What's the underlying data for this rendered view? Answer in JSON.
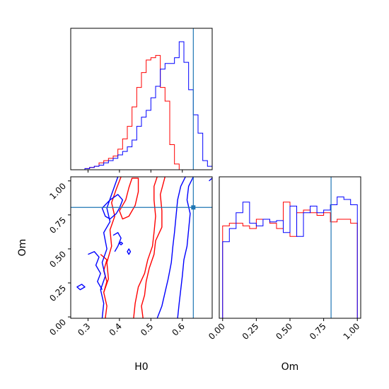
{
  "chart_data": {
    "type": "corner",
    "parameters": [
      "H0",
      "Om"
    ],
    "truth": {
      "H0": 0.635,
      "Om": 0.805
    },
    "colors": {
      "red": "#ff0000",
      "blue": "#0000ff",
      "truth": "#1f77b4"
    },
    "panels": [
      {
        "id": "h0-marginal",
        "type": "histogram",
        "xlim": [
          0.245,
          0.695
        ],
        "bins": [
          0.245,
          0.26,
          0.275,
          0.29,
          0.305,
          0.32,
          0.335,
          0.35,
          0.365,
          0.38,
          0.395,
          0.41,
          0.425,
          0.44,
          0.455,
          0.47,
          0.485,
          0.5,
          0.515,
          0.53,
          0.545,
          0.56,
          0.575,
          0.59,
          0.605,
          0.62,
          0.635,
          0.65,
          0.665,
          0.68,
          0.695
        ],
        "series": [
          {
            "color": "red",
            "values": [
              0,
              0,
              0,
              1,
              2,
              3,
              6,
              8,
              10,
              12,
              18,
              27,
              38,
              55,
              72,
              85,
              96,
              98,
              100,
              72,
              60,
              22,
              5,
              0,
              0,
              0,
              0,
              0,
              0,
              0
            ]
          },
          {
            "color": "blue",
            "values": [
              0,
              0,
              0,
              1,
              2,
              3,
              4,
              6,
              8,
              10,
              13,
              16,
              20,
              26,
              38,
              46,
              52,
              63,
              73,
              88,
              93,
              93,
              98,
              112,
              94,
              70,
              48,
              32,
              8,
              3
            ]
          }
        ]
      },
      {
        "id": "om-marginal",
        "type": "histogram",
        "xlim": [
          -0.025,
          1.025
        ],
        "bins": [
          0.0,
          0.05,
          0.1,
          0.15,
          0.2,
          0.25,
          0.3,
          0.35,
          0.4,
          0.45,
          0.5,
          0.55,
          0.6,
          0.65,
          0.7,
          0.75,
          0.8,
          0.85,
          0.9,
          0.95,
          1.0
        ],
        "series": [
          {
            "color": "red",
            "values": [
              70,
              72,
              72,
              70,
              68,
              75,
              75,
              72,
              68,
              88,
              62,
              80,
              82,
              80,
              78,
              80,
              73,
              75,
              75,
              72
            ]
          },
          {
            "color": "blue",
            "values": [
              58,
              68,
              80,
              88,
              72,
              70,
              75,
              73,
              74,
              65,
              85,
              62,
              80,
              85,
              80,
              82,
              86,
              92,
              90,
              86
            ]
          }
        ]
      },
      {
        "id": "h0-om-contour",
        "type": "contour",
        "xlim": [
          0.245,
          0.695
        ],
        "ylim": [
          -0.01,
          1.03
        ]
      }
    ],
    "axes": {
      "x_labels": [
        "H0",
        "Om"
      ],
      "y_label": "Om",
      "h0_ticks": [
        "0.3",
        "0.4",
        "0.5",
        "0.6"
      ],
      "om_ticks": [
        "0.00",
        "0.25",
        "0.50",
        "0.75",
        "1.00"
      ]
    }
  }
}
